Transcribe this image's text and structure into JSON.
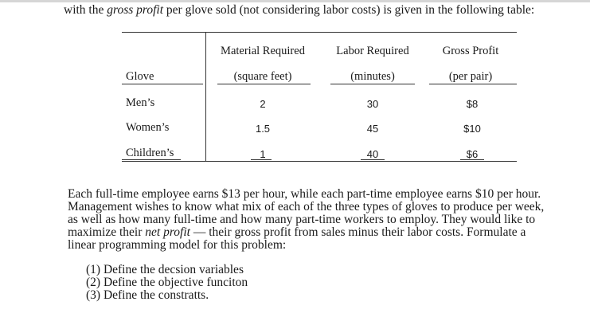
{
  "intro": {
    "before": "with the ",
    "emph": "gross profit",
    "after": " per glove sold (not considering labor costs) is given in the following table:"
  },
  "table": {
    "headers": {
      "glove": "Glove",
      "material_line1": "Material Required",
      "material_line2": "(square feet)",
      "labor_line1": "Labor Required",
      "labor_line2": "(minutes)",
      "profit_line1": "Gross Profit",
      "profit_line2": "(per pair)"
    },
    "rows": [
      {
        "glove": "Men’s",
        "material": "2",
        "labor": "30",
        "profit": "$8"
      },
      {
        "glove": "Women’s",
        "material": "1.5",
        "labor": "45",
        "profit": "$10"
      },
      {
        "glove": "Children’s",
        "material": "1",
        "labor": "40",
        "profit": "$6"
      }
    ]
  },
  "paragraph": {
    "line1": "Each full-time employee earns $13 per hour, while each part-time employee earns $10 per hour.",
    "line2": "Management wishes to know what mix of each of the three types of gloves to produce per week,",
    "line3": "as well as how many full-time and how many part-time workers to employ. They would like to",
    "line4_before": "maximize their ",
    "line4_emph": "net profit",
    "line4_after": " — their gross profit from sales minus their labor costs.  Formulate a",
    "line5": "linear programming model for this problem:"
  },
  "tasks": [
    "(1) Define the decsion variables",
    "(2) Define the objective funciton",
    "(3) Define the constratts."
  ]
}
